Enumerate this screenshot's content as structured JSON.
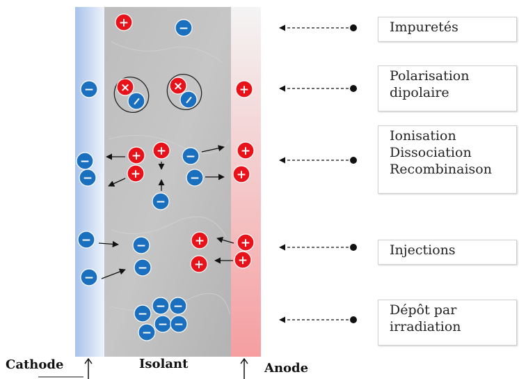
{
  "labels": {
    "impuretes": "Impuretés",
    "polarisation": "Polarisation\ndipolaire",
    "ionisation": "Ionisation\nDissociation\nRecombinaison",
    "injections": "Injections",
    "depot": "Dépôt par\nirradiation"
  },
  "bottom": {
    "cathode": "Cathode",
    "isolant": "Isolant",
    "anode": "Anode"
  },
  "symbols": {
    "plus": "+",
    "minus": "−",
    "cross": "×"
  },
  "colors": {
    "positive": "#e8121b",
    "negative": "#1b6fbf",
    "cathode": "#a9c2ea",
    "anode": "#f59ea0",
    "insulator": "#b9b9b9"
  }
}
